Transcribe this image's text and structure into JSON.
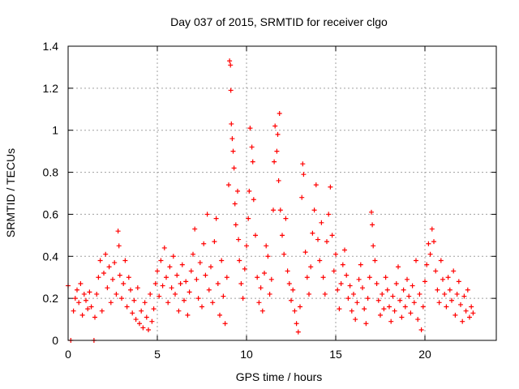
{
  "chart_data": {
    "type": "scatter",
    "title": "Day 037 of 2015, SRMTID for receiver clgo",
    "xlabel": "GPS time / hours",
    "ylabel": "SRMTID / TECUs",
    "xlim": [
      0,
      24
    ],
    "ylim": [
      0,
      1.4
    ],
    "xticks": [
      "0",
      "5",
      "10",
      "15",
      "20"
    ],
    "yticks": [
      "0",
      "0.2",
      "0.4",
      "0.6",
      "0.8",
      "1",
      "1.2",
      "1.4"
    ],
    "grid": true,
    "marker": "+",
    "color": "#ff0000",
    "series": [
      {
        "name": "SRMTID",
        "points": [
          [
            0.0,
            0.26
          ],
          [
            0.15,
            0.0
          ],
          [
            0.3,
            0.14
          ],
          [
            0.4,
            0.2
          ],
          [
            0.5,
            0.24
          ],
          [
            0.6,
            0.18
          ],
          [
            0.7,
            0.27
          ],
          [
            0.8,
            0.12
          ],
          [
            0.9,
            0.22
          ],
          [
            1.0,
            0.19
          ],
          [
            1.1,
            0.15
          ],
          [
            1.2,
            0.23
          ],
          [
            1.3,
            0.16
          ],
          [
            1.45,
            0.0
          ],
          [
            1.5,
            0.11
          ],
          [
            1.6,
            0.22
          ],
          [
            1.7,
            0.3
          ],
          [
            1.8,
            0.38
          ],
          [
            1.9,
            0.14
          ],
          [
            2.0,
            0.32
          ],
          [
            2.1,
            0.41
          ],
          [
            2.2,
            0.25
          ],
          [
            2.3,
            0.35
          ],
          [
            2.4,
            0.18
          ],
          [
            2.5,
            0.29
          ],
          [
            2.6,
            0.37
          ],
          [
            2.7,
            0.22
          ],
          [
            2.8,
            0.52
          ],
          [
            2.85,
            0.45
          ],
          [
            2.9,
            0.31
          ],
          [
            3.0,
            0.2
          ],
          [
            3.1,
            0.27
          ],
          [
            3.2,
            0.38
          ],
          [
            3.3,
            0.16
          ],
          [
            3.4,
            0.3
          ],
          [
            3.5,
            0.24
          ],
          [
            3.6,
            0.13
          ],
          [
            3.7,
            0.19
          ],
          [
            3.8,
            0.1
          ],
          [
            3.9,
            0.25
          ],
          [
            4.0,
            0.08
          ],
          [
            4.1,
            0.14
          ],
          [
            4.2,
            0.06
          ],
          [
            4.3,
            0.18
          ],
          [
            4.4,
            0.11
          ],
          [
            4.5,
            0.05
          ],
          [
            4.6,
            0.22
          ],
          [
            4.7,
            0.09
          ],
          [
            4.8,
            0.15
          ],
          [
            4.9,
            0.27
          ],
          [
            5.0,
            0.33
          ],
          [
            5.1,
            0.21
          ],
          [
            5.2,
            0.38
          ],
          [
            5.3,
            0.26
          ],
          [
            5.4,
            0.44
          ],
          [
            5.5,
            0.3
          ],
          [
            5.6,
            0.18
          ],
          [
            5.7,
            0.35
          ],
          [
            5.8,
            0.25
          ],
          [
            5.9,
            0.4
          ],
          [
            6.0,
            0.22
          ],
          [
            6.1,
            0.31
          ],
          [
            6.2,
            0.14
          ],
          [
            6.3,
            0.27
          ],
          [
            6.4,
            0.36
          ],
          [
            6.5,
            0.19
          ],
          [
            6.6,
            0.28
          ],
          [
            6.7,
            0.12
          ],
          [
            6.8,
            0.23
          ],
          [
            6.9,
            0.33
          ],
          [
            7.0,
            0.41
          ],
          [
            7.1,
            0.53
          ],
          [
            7.2,
            0.29
          ],
          [
            7.3,
            0.2
          ],
          [
            7.4,
            0.37
          ],
          [
            7.5,
            0.16
          ],
          [
            7.6,
            0.46
          ],
          [
            7.7,
            0.31
          ],
          [
            7.8,
            0.6
          ],
          [
            7.9,
            0.24
          ],
          [
            8.0,
            0.35
          ],
          [
            8.1,
            0.18
          ],
          [
            8.2,
            0.47
          ],
          [
            8.3,
            0.58
          ],
          [
            8.4,
            0.27
          ],
          [
            8.5,
            0.12
          ],
          [
            8.6,
            0.38
          ],
          [
            8.7,
            0.21
          ],
          [
            8.8,
            0.08
          ],
          [
            8.9,
            0.3
          ],
          [
            9.0,
            0.74
          ],
          [
            9.05,
            1.33
          ],
          [
            9.1,
            1.31
          ],
          [
            9.12,
            1.19
          ],
          [
            9.15,
            1.03
          ],
          [
            9.2,
            0.96
          ],
          [
            9.25,
            0.9
          ],
          [
            9.3,
            0.82
          ],
          [
            9.35,
            0.65
          ],
          [
            9.4,
            0.55
          ],
          [
            9.5,
            0.71
          ],
          [
            9.55,
            0.48
          ],
          [
            9.6,
            0.38
          ],
          [
            9.7,
            0.27
          ],
          [
            9.8,
            0.2
          ],
          [
            9.9,
            0.34
          ],
          [
            10.0,
            0.45
          ],
          [
            10.1,
            0.58
          ],
          [
            10.15,
            0.71
          ],
          [
            10.2,
            1.01
          ],
          [
            10.3,
            0.92
          ],
          [
            10.35,
            0.85
          ],
          [
            10.4,
            0.67
          ],
          [
            10.5,
            0.5
          ],
          [
            10.6,
            0.3
          ],
          [
            10.7,
            0.18
          ],
          [
            10.8,
            0.25
          ],
          [
            10.9,
            0.14
          ],
          [
            11.0,
            0.32
          ],
          [
            11.1,
            0.45
          ],
          [
            11.2,
            0.4
          ],
          [
            11.3,
            0.22
          ],
          [
            11.4,
            0.29
          ],
          [
            11.5,
            0.62
          ],
          [
            11.55,
            0.85
          ],
          [
            11.6,
            1.02
          ],
          [
            11.7,
            0.9
          ],
          [
            11.75,
            0.98
          ],
          [
            11.8,
            0.76
          ],
          [
            11.85,
            1.08
          ],
          [
            11.9,
            0.62
          ],
          [
            12.0,
            0.5
          ],
          [
            12.1,
            0.41
          ],
          [
            12.2,
            0.58
          ],
          [
            12.3,
            0.33
          ],
          [
            12.4,
            0.27
          ],
          [
            12.5,
            0.19
          ],
          [
            12.6,
            0.24
          ],
          [
            12.7,
            0.14
          ],
          [
            12.8,
            0.08
          ],
          [
            12.9,
            0.04
          ],
          [
            13.0,
            0.16
          ],
          [
            13.1,
            0.68
          ],
          [
            13.15,
            0.84
          ],
          [
            13.2,
            0.79
          ],
          [
            13.3,
            0.42
          ],
          [
            13.4,
            0.3
          ],
          [
            13.5,
            0.22
          ],
          [
            13.6,
            0.35
          ],
          [
            13.7,
            0.51
          ],
          [
            13.8,
            0.62
          ],
          [
            13.9,
            0.74
          ],
          [
            14.0,
            0.48
          ],
          [
            14.1,
            0.38
          ],
          [
            14.2,
            0.56
          ],
          [
            14.3,
            0.3
          ],
          [
            14.4,
            0.22
          ],
          [
            14.5,
            0.47
          ],
          [
            14.6,
            0.6
          ],
          [
            14.7,
            0.73
          ],
          [
            14.8,
            0.5
          ],
          [
            14.9,
            0.33
          ],
          [
            15.0,
            0.41
          ],
          [
            15.1,
            0.24
          ],
          [
            15.2,
            0.15
          ],
          [
            15.3,
            0.27
          ],
          [
            15.4,
            0.36
          ],
          [
            15.5,
            0.43
          ],
          [
            15.6,
            0.31
          ],
          [
            15.7,
            0.2
          ],
          [
            15.8,
            0.26
          ],
          [
            15.9,
            0.14
          ],
          [
            16.0,
            0.22
          ],
          [
            16.1,
            0.1
          ],
          [
            16.2,
            0.18
          ],
          [
            16.3,
            0.29
          ],
          [
            16.4,
            0.36
          ],
          [
            16.5,
            0.25
          ],
          [
            16.6,
            0.15
          ],
          [
            16.7,
            0.08
          ],
          [
            16.8,
            0.2
          ],
          [
            16.9,
            0.3
          ],
          [
            17.0,
            0.61
          ],
          [
            17.05,
            0.55
          ],
          [
            17.1,
            0.45
          ],
          [
            17.2,
            0.38
          ],
          [
            17.3,
            0.27
          ],
          [
            17.4,
            0.19
          ],
          [
            17.5,
            0.12
          ],
          [
            17.6,
            0.22
          ],
          [
            17.7,
            0.15
          ],
          [
            17.8,
            0.3
          ],
          [
            17.9,
            0.24
          ],
          [
            18.0,
            0.16
          ],
          [
            18.1,
            0.09
          ],
          [
            18.2,
            0.21
          ],
          [
            18.3,
            0.14
          ],
          [
            18.4,
            0.27
          ],
          [
            18.5,
            0.35
          ],
          [
            18.6,
            0.19
          ],
          [
            18.7,
            0.11
          ],
          [
            18.8,
            0.24
          ],
          [
            18.9,
            0.16
          ],
          [
            19.0,
            0.29
          ],
          [
            19.1,
            0.21
          ],
          [
            19.2,
            0.13
          ],
          [
            19.3,
            0.26
          ],
          [
            19.4,
            0.18
          ],
          [
            19.5,
            0.38
          ],
          [
            19.6,
            0.1
          ],
          [
            19.7,
            0.22
          ],
          [
            19.8,
            0.05
          ],
          [
            19.9,
            0.16
          ],
          [
            20.0,
            0.28
          ],
          [
            20.1,
            0.36
          ],
          [
            20.2,
            0.46
          ],
          [
            20.3,
            0.41
          ],
          [
            20.4,
            0.53
          ],
          [
            20.5,
            0.47
          ],
          [
            20.6,
            0.33
          ],
          [
            20.7,
            0.24
          ],
          [
            20.8,
            0.18
          ],
          [
            20.9,
            0.38
          ],
          [
            21.0,
            0.29
          ],
          [
            21.1,
            0.22
          ],
          [
            21.2,
            0.16
          ],
          [
            21.3,
            0.3
          ],
          [
            21.4,
            0.24
          ],
          [
            21.5,
            0.19
          ],
          [
            21.6,
            0.33
          ],
          [
            21.7,
            0.12
          ],
          [
            21.8,
            0.22
          ],
          [
            21.9,
            0.28
          ],
          [
            22.0,
            0.17
          ],
          [
            22.1,
            0.09
          ],
          [
            22.2,
            0.21
          ],
          [
            22.3,
            0.14
          ],
          [
            22.4,
            0.24
          ],
          [
            22.5,
            0.11
          ],
          [
            22.6,
            0.16
          ],
          [
            22.7,
            0.13
          ]
        ]
      }
    ]
  }
}
